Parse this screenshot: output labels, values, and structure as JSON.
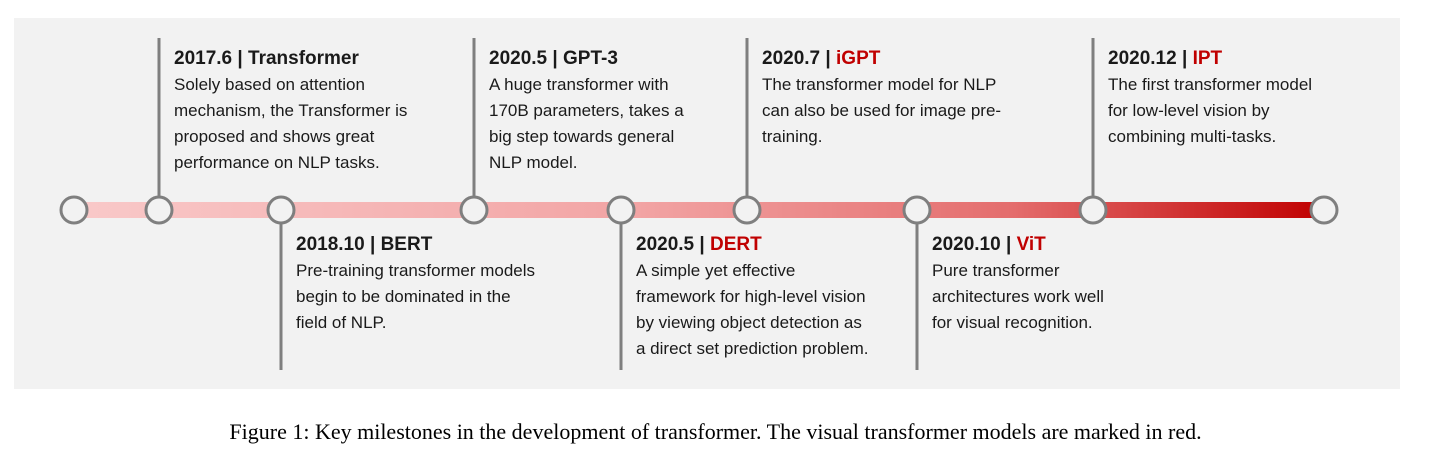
{
  "colors": {
    "panel_bg": "#f2f2f2",
    "connector_line": "#7f7f7f",
    "node_stroke": "#7f7f7f",
    "node_fill": "#f2f2f2",
    "visual_red": "#c00000",
    "bar_gradient": [
      "#f9c9c9",
      "#f2a4a4",
      "#e46d6d",
      "#c00000"
    ]
  },
  "events": [
    {
      "date": "2017.6",
      "name": "Transformer",
      "visual": false,
      "description": "Solely based on attention\nmechanism, the Transformer is\nproposed and shows great\nperformance on NLP tasks."
    },
    {
      "date": "2018.10",
      "name": "BERT",
      "visual": false,
      "description": "Pre-training transformer models\nbegin to be dominated in the\nfield of NLP."
    },
    {
      "date": "2020.5",
      "name": "GPT-3",
      "visual": false,
      "description": "A huge transformer with\n170B parameters, takes a\nbig step towards general\nNLP model."
    },
    {
      "date": "2020.5",
      "name": "DERT",
      "visual": true,
      "description": "A simple yet effective\nframework for high-level vision\nby viewing object detection as\na direct set prediction problem."
    },
    {
      "date": "2020.7",
      "name": "iGPT",
      "visual": true,
      "description": "The transformer model for NLP\ncan also be used for image pre-\ntraining."
    },
    {
      "date": "2020.10",
      "name": "ViT",
      "visual": true,
      "description": "Pure transformer\narchitectures work well\nfor visual recognition."
    },
    {
      "date": "2020.12",
      "name": "IPT",
      "visual": true,
      "description": "The first transformer model\nfor low-level vision by\ncombining multi-tasks."
    }
  ],
  "separator": "|",
  "caption": "Figure 1: Key milestones in the development of transformer. The visual transformer models are marked in red."
}
